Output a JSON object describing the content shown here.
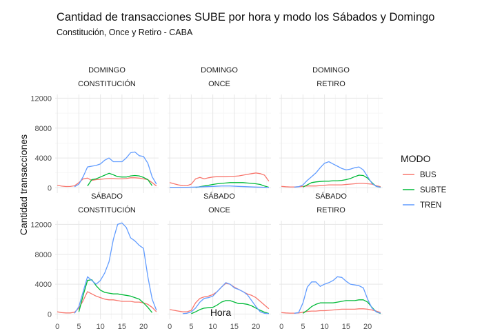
{
  "chart_data": {
    "type": "line",
    "title": "Cantidad de transacciones SUBE por hora y modo los Sábados y Domingo",
    "subtitle": "Constitución, Once y Retiro - CABA",
    "xlabel": "Hora",
    "ylabel": "Cantidad transacciones",
    "xlim": [
      -0.5,
      23.5
    ],
    "ylim": [
      -700,
      12500
    ],
    "x_ticks": [
      0,
      5,
      10,
      15,
      20
    ],
    "y_ticks": [
      0,
      4000,
      8000,
      12000
    ],
    "grid": true,
    "legend": {
      "title": "MODO",
      "position": "right",
      "items": [
        {
          "label": "BUS",
          "color": "#f8766d"
        },
        {
          "label": "SUBTE",
          "color": "#00ba38"
        },
        {
          "label": "TREN",
          "color": "#619cff"
        }
      ]
    },
    "panels": [
      {
        "day": "DOMINGO",
        "station": "CONSTITUCIÓN",
        "series": [
          {
            "name": "BUS",
            "color": "#f8766d",
            "x": [
              0,
              1,
              2,
              3,
              4,
              5,
              6,
              7,
              8,
              9,
              10,
              11,
              12,
              13,
              14,
              15,
              16,
              17,
              18,
              19,
              20,
              21,
              22,
              23
            ],
            "values": [
              350,
              230,
              180,
              190,
              280,
              700,
              1200,
              1300,
              1000,
              1100,
              1150,
              1200,
              1250,
              1250,
              1200,
              1200,
              1250,
              1350,
              1350,
              1300,
              1200,
              1100,
              700,
              250
            ]
          },
          {
            "name": "SUBTE",
            "color": "#00ba38",
            "x": [
              7,
              8,
              9,
              10,
              11,
              12,
              13,
              14,
              15,
              16,
              17,
              18,
              19,
              20,
              21,
              22
            ],
            "values": [
              250,
              1100,
              1200,
              1450,
              1700,
              1950,
              1750,
              1500,
              1450,
              1450,
              1600,
              1650,
              1600,
              1400,
              1100,
              300
            ]
          },
          {
            "name": "TREN",
            "color": "#619cff",
            "x": [
              4,
              5,
              6,
              7,
              8,
              9,
              10,
              11,
              12,
              13,
              14,
              15,
              16,
              17,
              18,
              19,
              20,
              21,
              22,
              23
            ],
            "values": [
              150,
              500,
              1500,
              2800,
              2900,
              3000,
              3200,
              3700,
              4000,
              3500,
              3500,
              3500,
              4000,
              4700,
              4800,
              4300,
              4200,
              3300,
              1500,
              500
            ]
          }
        ]
      },
      {
        "day": "DOMINGO",
        "station": "ONCE",
        "series": [
          {
            "name": "BUS",
            "color": "#f8766d",
            "x": [
              0,
              1,
              2,
              3,
              4,
              5,
              6,
              7,
              8,
              9,
              10,
              11,
              12,
              13,
              14,
              15,
              16,
              17,
              18,
              19,
              20,
              21,
              22,
              23
            ],
            "values": [
              700,
              550,
              400,
              300,
              280,
              500,
              1200,
              1400,
              1200,
              1350,
              1450,
              1500,
              1500,
              1500,
              1550,
              1550,
              1600,
              1700,
              1800,
              1900,
              2000,
              1900,
              1700,
              900
            ]
          },
          {
            "name": "SUBTE",
            "color": "#00ba38",
            "x": [
              6,
              7,
              8,
              9,
              10,
              11,
              12,
              13,
              14,
              15,
              16,
              17,
              18,
              19,
              20,
              21,
              22,
              23
            ],
            "values": [
              50,
              150,
              250,
              350,
              450,
              550,
              600,
              650,
              700,
              700,
              700,
              700,
              650,
              600,
              550,
              450,
              250,
              80
            ]
          },
          {
            "name": "TREN",
            "color": "#619cff",
            "x": [
              0,
              2,
              4,
              6,
              8,
              10,
              12,
              14,
              16,
              18,
              20,
              22,
              23
            ],
            "values": [
              80,
              80,
              80,
              100,
              150,
              200,
              250,
              250,
              200,
              150,
              100,
              80,
              80
            ]
          }
        ]
      },
      {
        "day": "DOMINGO",
        "station": "RETIRO",
        "series": [
          {
            "name": "BUS",
            "color": "#f8766d",
            "x": [
              0,
              1,
              2,
              3,
              4,
              5,
              6,
              7,
              8,
              9,
              10,
              11,
              12,
              13,
              14,
              15,
              16,
              17,
              18,
              19,
              20,
              21,
              22,
              23
            ],
            "values": [
              200,
              150,
              120,
              120,
              150,
              200,
              250,
              250,
              250,
              300,
              350,
              400,
              400,
              400,
              400,
              450,
              500,
              550,
              600,
              600,
              550,
              500,
              300,
              150
            ]
          },
          {
            "name": "SUBTE",
            "color": "#00ba38",
            "x": [
              5,
              6,
              7,
              8,
              9,
              10,
              11,
              12,
              13,
              14,
              15,
              16,
              17,
              18,
              19,
              20,
              21,
              22,
              23
            ],
            "values": [
              100,
              400,
              700,
              800,
              850,
              900,
              900,
              950,
              950,
              1000,
              1100,
              1250,
              1500,
              1700,
              1650,
              1300,
              700,
              200,
              80
            ]
          },
          {
            "name": "TREN",
            "color": "#619cff",
            "x": [
              3,
              4,
              5,
              6,
              7,
              8,
              9,
              10,
              11,
              12,
              13,
              14,
              15,
              16,
              17,
              18,
              19,
              20,
              21,
              22,
              23
            ],
            "values": [
              100,
              150,
              400,
              1000,
              1500,
              2000,
              2700,
              3300,
              3500,
              3200,
              2900,
              2600,
              2400,
              2500,
              2700,
              2800,
              2400,
              1500,
              600,
              200,
              80
            ]
          }
        ]
      },
      {
        "day": "SÁBADO",
        "station": "CONSTITUCIÓN",
        "series": [
          {
            "name": "BUS",
            "color": "#f8766d",
            "x": [
              0,
              1,
              2,
              3,
              4,
              5,
              6,
              7,
              8,
              9,
              10,
              11,
              12,
              13,
              14,
              15,
              16,
              17,
              18,
              19,
              20,
              21,
              22,
              23
            ],
            "values": [
              300,
              200,
              150,
              150,
              250,
              800,
              1800,
              3000,
              2700,
              2400,
              2200,
              2000,
              1900,
              1900,
              1800,
              1700,
              1700,
              1700,
              1600,
              1600,
              1500,
              1300,
              900,
              300
            ]
          },
          {
            "name": "SUBTE",
            "color": "#00ba38",
            "x": [
              5,
              6,
              7,
              8,
              9,
              10,
              11,
              12,
              13,
              14,
              15,
              16,
              17,
              18,
              19,
              20,
              21,
              22
            ],
            "values": [
              300,
              2500,
              4500,
              4600,
              3800,
              3200,
              2900,
              2800,
              2700,
              2700,
              2600,
              2500,
              2400,
              2200,
              2000,
              1500,
              900,
              200
            ]
          },
          {
            "name": "TREN",
            "color": "#619cff",
            "x": [
              4,
              5,
              6,
              7,
              8,
              9,
              10,
              11,
              12,
              13,
              14,
              15,
              16,
              17,
              18,
              19,
              20,
              21,
              22,
              23
            ],
            "values": [
              100,
              1000,
              3000,
              5000,
              4500,
              4000,
              4500,
              5500,
              7000,
              10000,
              12000,
              12200,
              11600,
              10200,
              9800,
              9200,
              8800,
              5000,
              2000,
              500
            ]
          }
        ]
      },
      {
        "day": "SÁBADO",
        "station": "ONCE",
        "series": [
          {
            "name": "BUS",
            "color": "#f8766d",
            "x": [
              0,
              1,
              2,
              3,
              4,
              5,
              6,
              7,
              8,
              9,
              10,
              11,
              12,
              13,
              14,
              15,
              16,
              17,
              18,
              19,
              20,
              21,
              22,
              23
            ],
            "values": [
              600,
              500,
              400,
              300,
              300,
              500,
              1500,
              2100,
              2300,
              2400,
              2600,
              3000,
              3600,
              4100,
              4000,
              3600,
              3300,
              3000,
              2700,
              2500,
              2200,
              1700,
              1200,
              700
            ]
          },
          {
            "name": "SUBTE",
            "color": "#00ba38",
            "x": [
              5,
              6,
              7,
              8,
              9,
              10,
              11,
              12,
              13,
              14,
              15,
              16,
              17,
              18,
              19,
              20,
              21,
              22,
              23
            ],
            "values": [
              50,
              300,
              600,
              800,
              850,
              900,
              1200,
              1600,
              1800,
              1800,
              1600,
              1400,
              1400,
              1300,
              1100,
              800,
              500,
              250,
              80
            ]
          },
          {
            "name": "TREN",
            "color": "#619cff",
            "x": [
              3,
              4,
              5,
              6,
              7,
              8,
              9,
              10,
              11,
              12,
              13,
              14,
              15,
              16,
              17,
              18,
              19,
              20,
              21,
              22,
              23
            ],
            "values": [
              50,
              100,
              300,
              800,
              1600,
              2100,
              2200,
              2400,
              3000,
              3600,
              4200,
              4000,
              3500,
              3300,
              3000,
              2600,
              1800,
              1000,
              300,
              100,
              50
            ]
          }
        ]
      },
      {
        "day": "SÁBADO",
        "station": "RETIRO",
        "series": [
          {
            "name": "BUS",
            "color": "#f8766d",
            "x": [
              0,
              1,
              2,
              3,
              4,
              5,
              6,
              7,
              8,
              9,
              10,
              11,
              12,
              13,
              14,
              15,
              16,
              17,
              18,
              19,
              20,
              21,
              22,
              23
            ],
            "values": [
              200,
              150,
              120,
              120,
              150,
              250,
              350,
              400,
              400,
              450,
              450,
              500,
              550,
              600,
              650,
              650,
              650,
              650,
              700,
              700,
              650,
              550,
              400,
              200
            ]
          },
          {
            "name": "SUBTE",
            "color": "#00ba38",
            "x": [
              5,
              6,
              7,
              8,
              9,
              10,
              11,
              12,
              13,
              14,
              15,
              16,
              17,
              18,
              19,
              20,
              21,
              22,
              23
            ],
            "values": [
              100,
              500,
              1000,
              1300,
              1500,
              1500,
              1500,
              1500,
              1600,
              1700,
              1800,
              1800,
              1800,
              1900,
              1900,
              1600,
              900,
              300,
              80
            ]
          },
          {
            "name": "TREN",
            "color": "#619cff",
            "x": [
              3,
              4,
              5,
              6,
              7,
              8,
              9,
              10,
              11,
              12,
              13,
              14,
              15,
              16,
              17,
              18,
              19,
              20,
              21,
              22,
              23
            ],
            "values": [
              100,
              200,
              1500,
              3600,
              4300,
              4300,
              3700,
              4000,
              4200,
              4500,
              5000,
              4900,
              4400,
              4000,
              3900,
              3800,
              3500,
              2000,
              800,
              300,
              100
            ]
          }
        ]
      }
    ]
  }
}
